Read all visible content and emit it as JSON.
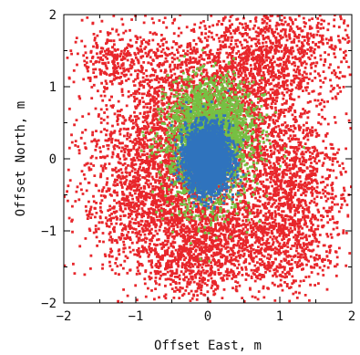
{
  "chart_data": {
    "type": "scatter",
    "title": "",
    "xlabel": "Offset East, m",
    "ylabel": "Offset North, m",
    "xlim": [
      -2,
      2
    ],
    "ylim": [
      -2,
      2
    ],
    "xticks": [
      "−2",
      "−1",
      "0",
      "1",
      "2"
    ],
    "yticks": [
      "2",
      "1",
      "0",
      "−1",
      "−2"
    ],
    "xtick_values": [
      -2,
      -1,
      0,
      1,
      2
    ],
    "ytick_values": [
      2,
      1,
      0,
      -1,
      -2
    ],
    "grid": false,
    "series": [
      {
        "color": "#e8262b",
        "clusters": [
          {
            "cx": -0.35,
            "cy": 0.3,
            "sx": 0.6,
            "sy": 0.75,
            "n": 2600
          },
          {
            "cx": 0.55,
            "cy": 1.2,
            "sx": 0.45,
            "sy": 0.45,
            "n": 900
          },
          {
            "cx": 1.3,
            "cy": 1.6,
            "sx": 0.45,
            "sy": 0.35,
            "n": 500
          },
          {
            "cx": -1.3,
            "cy": 1.35,
            "sx": 0.3,
            "sy": 0.2,
            "n": 260
          },
          {
            "cx": -0.8,
            "cy": -0.6,
            "sx": 0.5,
            "sy": 0.5,
            "n": 900
          },
          {
            "cx": 0.2,
            "cy": -1.1,
            "sx": 0.5,
            "sy": 0.35,
            "n": 800
          },
          {
            "cx": 1.25,
            "cy": -0.45,
            "sx": 0.35,
            "sy": 0.45,
            "n": 650
          },
          {
            "cx": -0.25,
            "cy": -1.45,
            "sx": 0.3,
            "sy": 0.35,
            "n": 400
          },
          {
            "cx": 1.05,
            "cy": -1.3,
            "sx": 0.35,
            "sy": 0.3,
            "n": 350
          },
          {
            "cx": 0.9,
            "cy": 0.1,
            "sx": 0.35,
            "sy": 0.55,
            "n": 500
          }
        ]
      },
      {
        "color": "#76c043",
        "clusters": [
          {
            "cx": 0.05,
            "cy": 0.45,
            "sx": 0.3,
            "sy": 0.32,
            "n": 1500
          },
          {
            "cx": 0.0,
            "cy": 0.0,
            "sx": 0.3,
            "sy": 0.42,
            "n": 1000
          }
        ]
      },
      {
        "color": "#2f73bd",
        "clusters": [
          {
            "cx": 0.0,
            "cy": 0.0,
            "sx": 0.15,
            "sy": 0.22,
            "n": 3200
          }
        ]
      }
    ]
  }
}
